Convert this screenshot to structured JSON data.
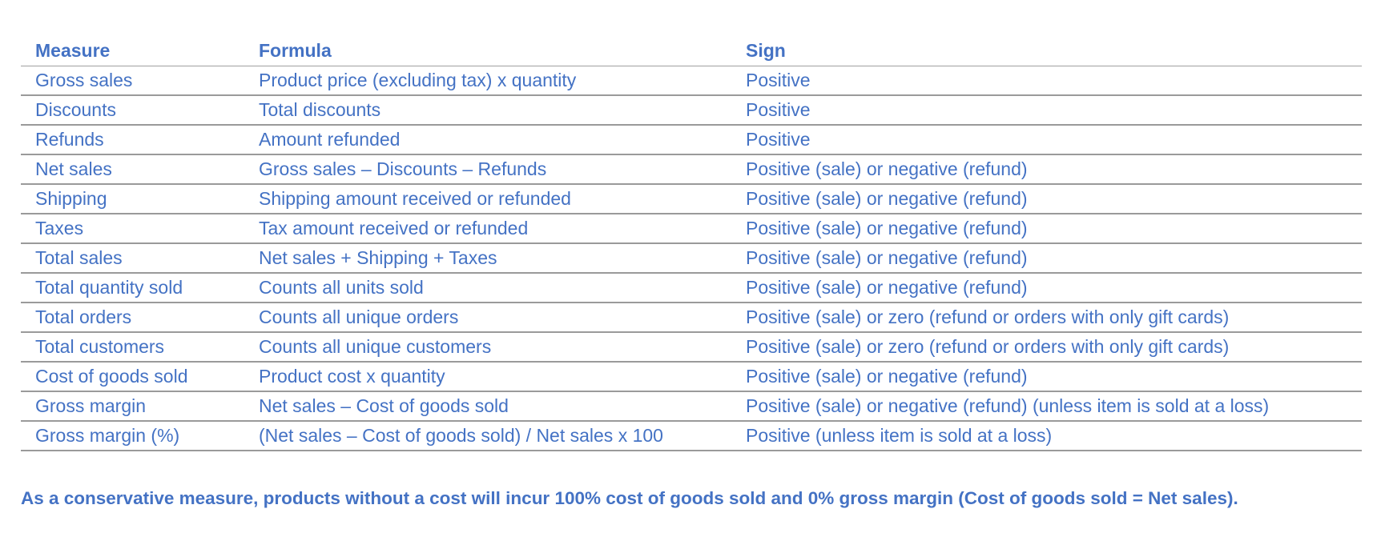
{
  "table": {
    "headers": [
      "Measure",
      "Formula",
      "Sign"
    ],
    "rows": [
      [
        "Gross sales",
        "Product price (excluding tax) x quantity",
        "Positive"
      ],
      [
        "Discounts",
        "Total discounts",
        "Positive"
      ],
      [
        "Refunds",
        "Amount refunded",
        "Positive"
      ],
      [
        "Net sales",
        "Gross sales – Discounts – Refunds",
        "Positive (sale) or negative (refund)"
      ],
      [
        "Shipping",
        "Shipping amount received or refunded",
        "Positive (sale) or negative (refund)"
      ],
      [
        "Taxes",
        "Tax amount received or refunded",
        "Positive (sale) or negative (refund)"
      ],
      [
        "Total sales",
        "Net sales + Shipping + Taxes",
        "Positive (sale) or negative (refund)"
      ],
      [
        "Total quantity sold",
        "Counts all units sold",
        "Positive (sale) or negative (refund)"
      ],
      [
        "Total orders",
        "Counts all unique orders",
        "Positive (sale) or zero (refund or orders with only gift cards)"
      ],
      [
        "Total customers",
        "Counts all unique customers",
        "Positive (sale) or zero (refund or orders with only gift cards)"
      ],
      [
        "Cost of goods sold",
        "Product cost x quantity",
        "Positive (sale) or negative (refund)"
      ],
      [
        "Gross margin",
        "Net sales – Cost of goods sold",
        "Positive (sale) or negative (refund) (unless item is sold at a loss)"
      ],
      [
        "Gross margin (%)",
        "(Net sales – Cost of goods sold) / Net sales x 100",
        "Positive (unless item is sold at a loss)"
      ]
    ]
  },
  "note": "As a conservative measure, products without a cost will incur 100% cost of goods sold and 0% gross margin (Cost of goods sold = Net sales).",
  "colors": {
    "text": "#4472C4",
    "rule": "#9a9a9a"
  }
}
